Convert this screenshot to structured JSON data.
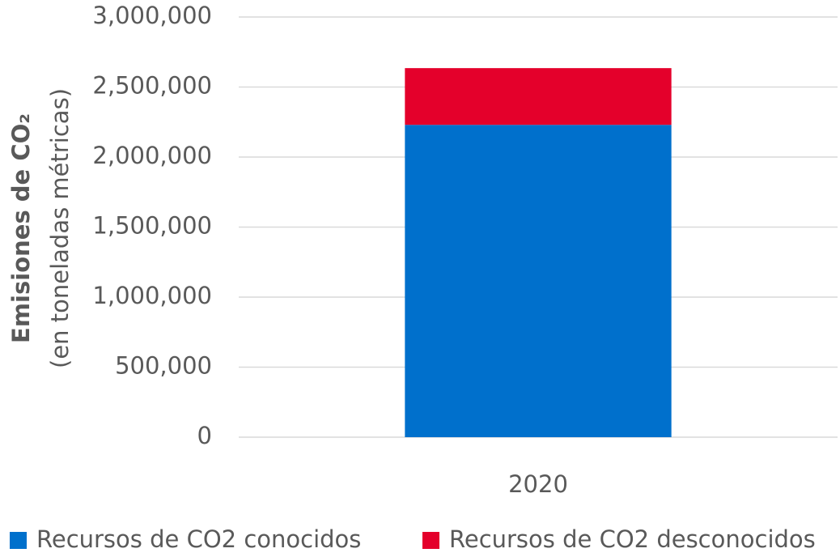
{
  "chart_data": {
    "type": "stacked_bar",
    "y_label": [
      "Emisiones de CO₂",
      "(en toneladas métricas)"
    ],
    "categories": [
      "2020"
    ],
    "series": [
      {
        "name": "Recursos de CO2 conocidos",
        "color": "#0070cc",
        "values": [
          2230000
        ]
      },
      {
        "name": "Recursos de CO2 desconocidos",
        "color": "#e4002b",
        "values": [
          405000
        ]
      }
    ],
    "ylim": [
      0,
      3000000
    ],
    "yticks": [
      0,
      {
        "value": 500000,
        "label": "500,000"
      },
      {
        "value": 1000000,
        "label": "1,000,000"
      },
      {
        "value": 1500000,
        "label": "1,500,000"
      },
      {
        "value": 2000000,
        "label": "2,000,000"
      },
      {
        "value": 2500000,
        "label": "2,500,000"
      },
      {
        "value": 3000000,
        "label": "3,000,000"
      }
    ],
    "grid": true,
    "legend": "bottom"
  }
}
